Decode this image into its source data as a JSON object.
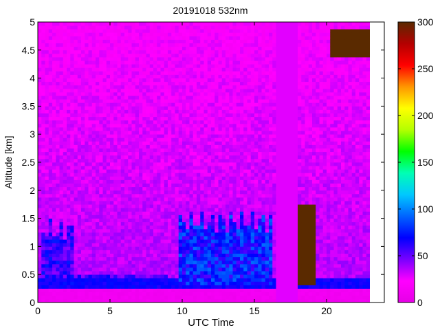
{
  "chart_data": {
    "type": "heatmap",
    "title": "20191018 532nm",
    "xlabel": "UTC Time",
    "ylabel": "Altitude [km]",
    "xlim": [
      0,
      24
    ],
    "ylim": [
      0,
      5
    ],
    "x_ticks": [
      0,
      5,
      10,
      15,
      20
    ],
    "y_ticks": [
      0,
      0.5,
      1,
      1.5,
      2,
      2.5,
      3,
      3.5,
      4,
      4.5,
      5
    ],
    "colorbar": {
      "range": [
        0,
        300
      ],
      "ticks": [
        0,
        50,
        100,
        150,
        200,
        250,
        300
      ],
      "colormap": [
        "#e600e6",
        "#ff00ff",
        "#7800ff",
        "#0000ff",
        "#0064ff",
        "#00c8ff",
        "#00ffb4",
        "#00ff00",
        "#b4ff00",
        "#ffff00",
        "#ff9600",
        "#ff0000",
        "#b40000",
        "#5a2a00"
      ]
    },
    "data_end_time": 23,
    "features": [
      {
        "kind": "boundary_layer",
        "x_start": 0,
        "x_end": 9,
        "altitude_top": 0.5,
        "value": 70
      },
      {
        "kind": "aerosol_plume",
        "x_start": 0.2,
        "x_end": 2.4,
        "altitude_top": 1.3,
        "value": 75
      },
      {
        "kind": "aerosol_plume",
        "x_start": 9.8,
        "x_end": 16.2,
        "altitude_top": 1.45,
        "value": 95
      },
      {
        "kind": "data_gap",
        "x_start": 16.6,
        "x_end": 17.9
      },
      {
        "kind": "cloud",
        "x_start": 18.0,
        "x_end": 19.2,
        "altitude_top": 1.75,
        "value": 300
      },
      {
        "kind": "cloud",
        "x_start": 20.2,
        "x_end": 22.9,
        "altitude_top": 4.85,
        "value": 300
      }
    ]
  }
}
